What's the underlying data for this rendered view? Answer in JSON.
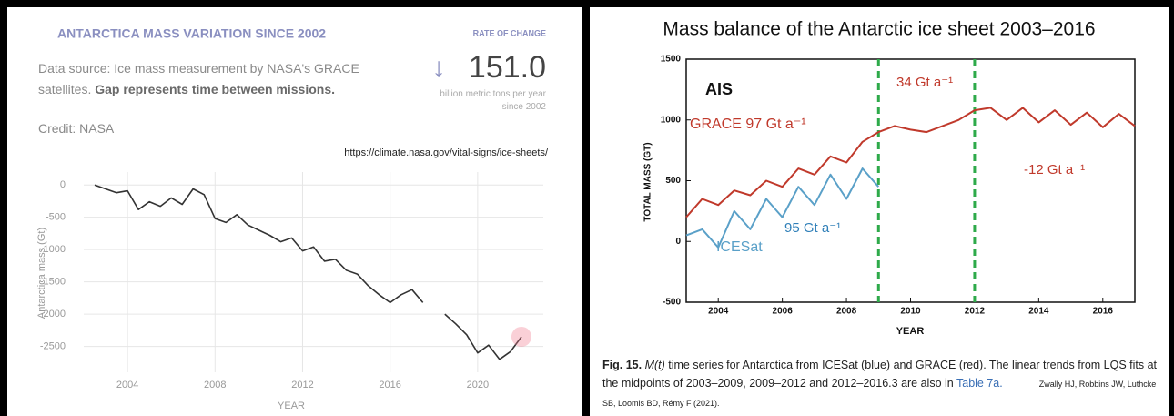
{
  "chart_data": [
    {
      "type": "line",
      "title": "ANTARCTICA MASS VARIATION SINCE 2002",
      "rate_label": "RATE OF CHANGE",
      "rate_value": "151.0",
      "rate_unit": "billion metric tons per year since 2002",
      "source": "Data source: Ice mass measurement by NASA's GRACE satellites.",
      "source_bold": "Gap represents time between missions.",
      "credit": "Credit: NASA",
      "url": "https://climate.nasa.gov/vital-signs/ice-sheets/",
      "xlabel": "YEAR",
      "ylabel": "Antarctica mass (Gt)",
      "x": [
        2002.5,
        2003,
        2003.5,
        2004,
        2004.5,
        2005,
        2005.5,
        2006,
        2006.5,
        2007,
        2007.5,
        2008,
        2008.5,
        2009,
        2009.5,
        2010,
        2010.5,
        2011,
        2011.5,
        2012,
        2012.5,
        2013,
        2013.5,
        2014,
        2014.5,
        2015,
        2015.5,
        2016,
        2016.5,
        2017,
        2017.5,
        2018,
        2018.5,
        2019,
        2019.5,
        2020,
        2020.5,
        2021,
        2021.5,
        2022
      ],
      "series": [
        {
          "color": "#333333",
          "values": [
            0,
            -60,
            -120,
            -90,
            -380,
            -260,
            -330,
            -200,
            -300,
            -60,
            -150,
            -520,
            -580,
            -460,
            -620,
            -700,
            -780,
            -880,
            -820,
            -1020,
            -960,
            -1180,
            -1150,
            -1320,
            -1380,
            -1560,
            -1700,
            -1820,
            -1700,
            -1620,
            -1820,
            null,
            -2000,
            -2150,
            -2320,
            -2600,
            -2480,
            -2700,
            -2580,
            -2350
          ]
        }
      ],
      "xlim": [
        2002,
        2023
      ],
      "ylim": [
        -2900,
        200
      ],
      "xticks": [
        2004,
        2008,
        2012,
        2016,
        2020
      ],
      "yticks": [
        0,
        -500,
        -1000,
        -1500,
        -2000,
        -2500
      ],
      "grid": true
    },
    {
      "type": "line",
      "title": "Mass balance of the Antarctic ice sheet 2003–2016",
      "xlabel": "YEAR",
      "ylabel": "TOTAL MASS (GT)",
      "series": [
        {
          "color": "#c0392b",
          "x": [
            2003,
            2003.5,
            2004,
            2004.5,
            2005,
            2005.5,
            2006,
            2006.5,
            2007,
            2007.5,
            2008,
            2008.5,
            2009,
            2009.5,
            2010,
            2010.5,
            2011,
            2011.5,
            2012,
            2012.5,
            2013,
            2013.5,
            2014,
            2014.5,
            2015,
            2015.5,
            2016,
            2016.5,
            2017
          ],
          "values": [
            200,
            350,
            300,
            420,
            380,
            500,
            450,
            600,
            550,
            700,
            650,
            820,
            900,
            950,
            920,
            900,
            950,
            1000,
            1080,
            1100,
            1000,
            1100,
            980,
            1080,
            960,
            1060,
            940,
            1050,
            950
          ]
        },
        {
          "color": "#5aa0c8",
          "x": [
            2003,
            2003.5,
            2004,
            2004.5,
            2005,
            2005.5,
            2006,
            2006.5,
            2007,
            2007.5,
            2008,
            2008.5,
            2009
          ],
          "values": [
            50,
            100,
            -50,
            250,
            100,
            350,
            200,
            450,
            300,
            550,
            350,
            600,
            450
          ]
        }
      ],
      "vlines": [
        2009,
        2012
      ],
      "vline_color": "#2eaa4a",
      "annotations": [
        "AIS",
        "GRACE  97 Gt a⁻¹",
        "34 Gt a⁻¹",
        "95 Gt a⁻¹",
        "ICESat",
        "-12 Gt a⁻¹"
      ],
      "caption_label": "Fig. 15.",
      "caption_italic": "M(t)",
      "caption_text": "time series for Antarctica from ICESat (blue) and GRACE (red). The linear trends from LQS fits at the midpoints of 2003–2009, 2009–2012 and 2012–2016.3 are also in",
      "caption_link": "Table 7a.",
      "citation": "Zwally HJ, Robbins JW, Luthcke SB, Loomis BD, Rémy F (2021).",
      "xlim": [
        2003,
        2017
      ],
      "ylim": [
        -500,
        1500
      ],
      "xticks": [
        2004,
        2006,
        2008,
        2010,
        2012,
        2014,
        2016
      ],
      "yticks": [
        -500,
        0,
        500,
        1000,
        1500
      ]
    }
  ]
}
